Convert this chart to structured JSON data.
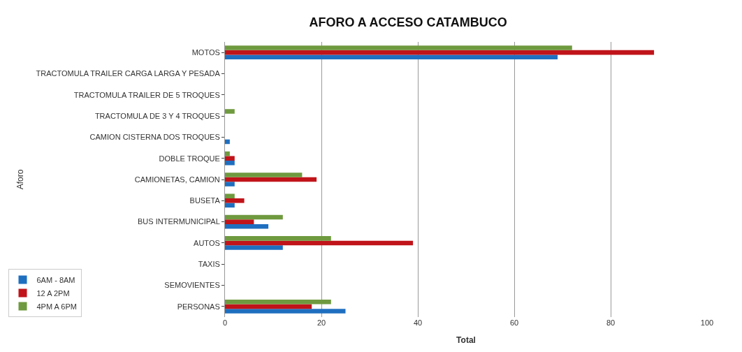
{
  "chart_data": {
    "type": "bar",
    "orientation": "horizontal",
    "title": "AFORO A ACCESO CATAMBUCO",
    "xlabel": "Total",
    "ylabel": "Aforo",
    "categories": [
      "MOTOS",
      "TRACTOMULA TRAILER CARGA LARGA Y PESADA",
      "TRACTOMULA TRAILER DE 5 TROQUES",
      "TRACTOMULA DE 3 Y 4 TROQUES",
      "CAMION CISTERNA DOS TROQUES",
      "DOBLE TROQUE",
      "CAMIONETAS, CAMION",
      "BUSETA",
      "BUS INTERMUNICIPAL",
      "AUTOS",
      "TAXIS",
      "SEMOVIENTES",
      "PERSONAS"
    ],
    "series": [
      {
        "name": "6AM - 8AM",
        "color": "#1f6fc0",
        "values": [
          69,
          0,
          0,
          0,
          1,
          2,
          2,
          2,
          9,
          12,
          0,
          0,
          25
        ]
      },
      {
        "name": "12 A 2PM",
        "color": "#c0141a",
        "values": [
          89,
          0,
          0,
          0,
          0,
          2,
          19,
          4,
          6,
          39,
          0,
          0,
          18
        ]
      },
      {
        "name": "4PM A 6PM",
        "color": "#6f9a3f",
        "values": [
          72,
          0,
          0,
          2,
          0,
          1,
          16,
          2,
          12,
          22,
          0,
          0,
          22
        ]
      }
    ],
    "xlim": [
      0,
      100
    ],
    "xticks": [
      0,
      20,
      40,
      60,
      80,
      100
    ],
    "grid": "x",
    "legend": "bottom left"
  }
}
